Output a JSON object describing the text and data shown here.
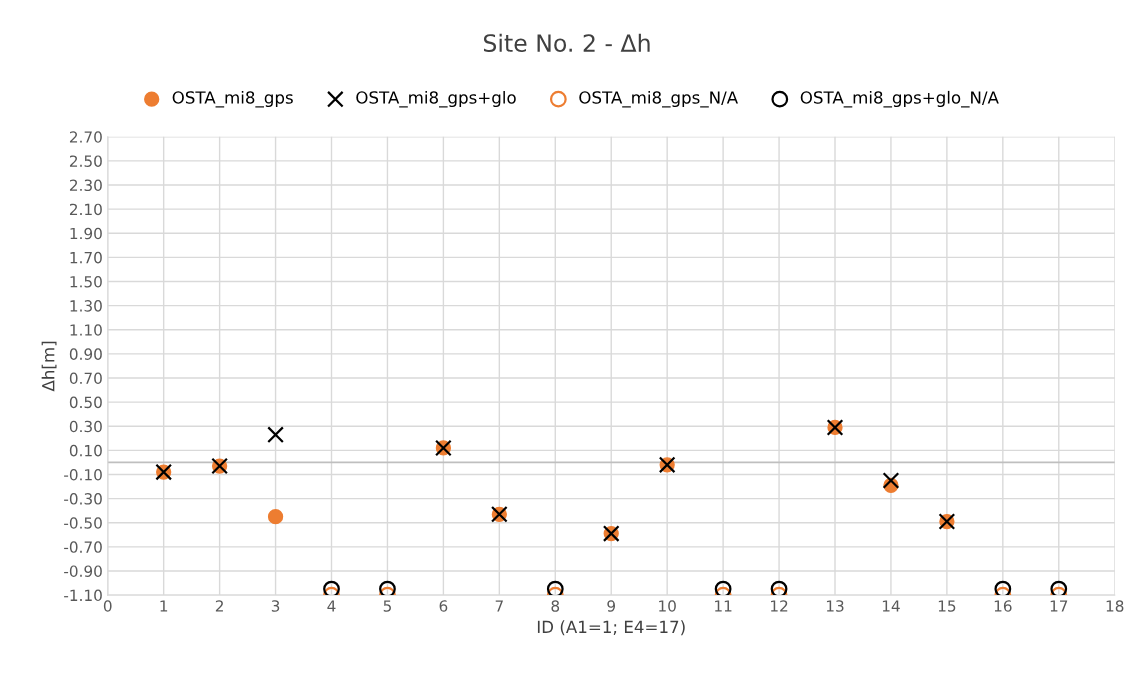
{
  "chart_data": {
    "type": "scatter",
    "title": "Site No. 2 - Δh",
    "xlabel": "ID (A1=1; E4=17)",
    "ylabel": "Δh[m]",
    "xlim": [
      0,
      18
    ],
    "xticks": [
      0,
      1,
      2,
      3,
      4,
      5,
      6,
      7,
      8,
      9,
      10,
      11,
      12,
      13,
      14,
      15,
      16,
      17,
      18
    ],
    "ylim": [
      -1.1,
      2.7
    ],
    "yticks": [
      {
        "value": -1.1,
        "label": "-1.10"
      },
      {
        "value": -0.9,
        "label": "-0.90"
      },
      {
        "value": -0.7,
        "label": "-0.70"
      },
      {
        "value": -0.5,
        "label": "-0.50"
      },
      {
        "value": -0.3,
        "label": "-0.30"
      },
      {
        "value": -0.1,
        "label": "-0.10"
      },
      {
        "value": 0.1,
        "label": "0.10"
      },
      {
        "value": 0.3,
        "label": "0.30"
      },
      {
        "value": 0.5,
        "label": "0.50"
      },
      {
        "value": 0.7,
        "label": "0.70"
      },
      {
        "value": 0.9,
        "label": "0.90"
      },
      {
        "value": 1.1,
        "label": "1.10"
      },
      {
        "value": 1.3,
        "label": "1.30"
      },
      {
        "value": 1.5,
        "label": "1.50"
      },
      {
        "value": 1.7,
        "label": "1.70"
      },
      {
        "value": 1.9,
        "label": "1.90"
      },
      {
        "value": 2.1,
        "label": "2.10"
      },
      {
        "value": 2.3,
        "label": "2.30"
      },
      {
        "value": 2.5,
        "label": "2.50"
      },
      {
        "value": 2.7,
        "label": "2.70"
      }
    ],
    "grid": true,
    "legend": "top",
    "ref_lines": [
      {
        "axis": "y",
        "value": 0,
        "color": "#bfbfbf"
      }
    ],
    "series": [
      {
        "name": "OSTA_mi8_gps",
        "color": "#ed7d31",
        "marker": "circle",
        "x": [
          1,
          2,
          3,
          6,
          7,
          9,
          10,
          13,
          14,
          15
        ],
        "values": [
          -0.08,
          -0.03,
          -0.45,
          0.12,
          -0.43,
          -0.59,
          -0.02,
          0.29,
          -0.19,
          -0.49
        ]
      },
      {
        "name": "OSTA_mi8_gps+glo",
        "color": "#000000",
        "marker": "cross",
        "x": [
          1,
          2,
          3,
          6,
          7,
          9,
          10,
          13,
          14,
          15
        ],
        "values": [
          -0.08,
          -0.03,
          0.23,
          0.12,
          -0.43,
          -0.59,
          -0.02,
          0.29,
          -0.15,
          -0.49
        ]
      },
      {
        "name": "OSTA_mi8_gps_N/A",
        "color": "#ed7d31",
        "marker": "circle",
        "x": [
          4,
          5,
          8,
          11,
          12,
          16,
          17
        ],
        "values": [
          -1.1,
          -1.1,
          -1.1,
          -1.1,
          -1.1,
          -1.1,
          -1.1
        ]
      },
      {
        "name": "OSTA_mi8_gps+glo_N/A",
        "color": "#000000",
        "marker": "circle",
        "x": [
          4,
          5,
          8,
          11,
          12,
          16,
          17
        ],
        "values": [
          -1.05,
          -1.05,
          -1.05,
          -1.05,
          -1.05,
          -1.05,
          -1.05
        ]
      }
    ]
  }
}
